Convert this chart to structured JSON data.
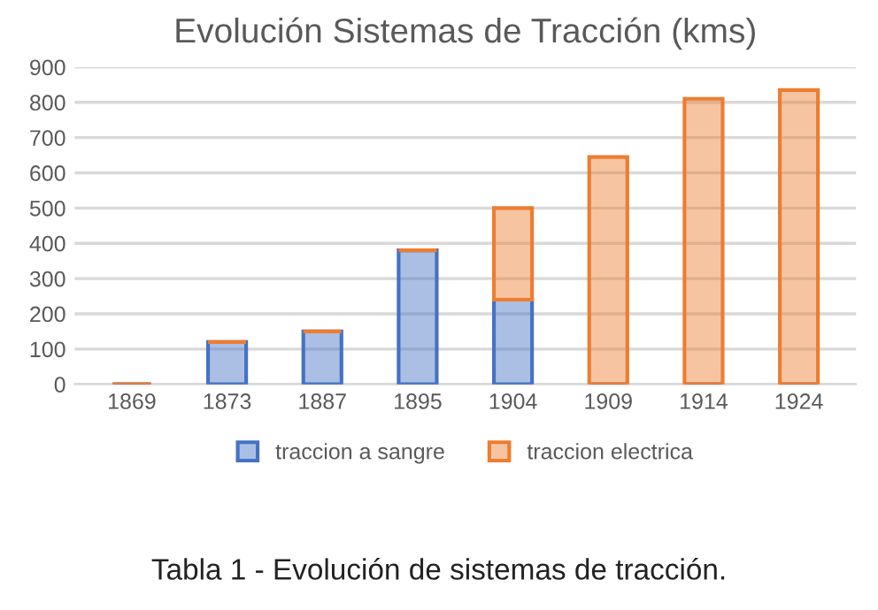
{
  "chart_data": {
    "type": "bar",
    "title": "Evolución Sistemas de Tracción (kms)",
    "categories": [
      "1869",
      "1873",
      "1887",
      "1895",
      "1904",
      "1909",
      "1914",
      "1924"
    ],
    "stacked": true,
    "series": [
      {
        "name": "traccion a sangre",
        "color": "#4472c4",
        "values": [
          0,
          120,
          150,
          380,
          240,
          0,
          0,
          0
        ]
      },
      {
        "name": "traccion electrica",
        "color": "#ed7d31",
        "values": [
          0,
          0,
          0,
          0,
          260,
          645,
          810,
          835
        ]
      }
    ],
    "ylim": [
      0,
      900
    ],
    "yticks": [
      0,
      100,
      200,
      300,
      400,
      500,
      600,
      700,
      800,
      900
    ],
    "grid": "y",
    "legend": "bottom",
    "annotations": [
      "Tabla 1 - Evolución de sistemas de tracción."
    ]
  }
}
